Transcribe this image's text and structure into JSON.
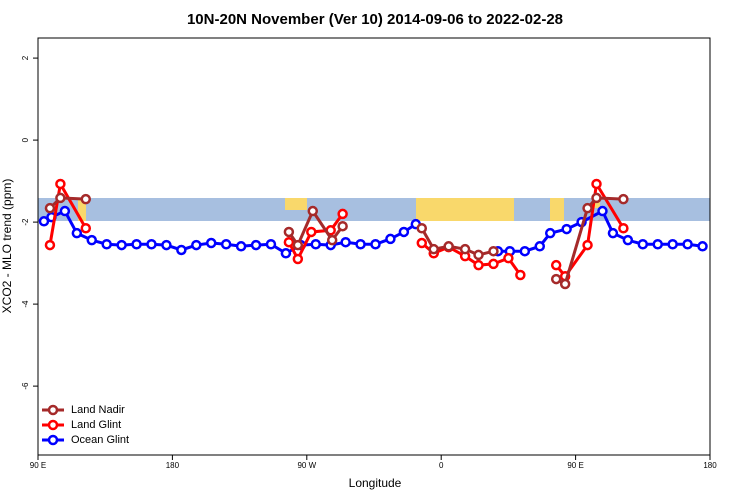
{
  "chart_data": {
    "type": "line",
    "title": "10N-20N November (Ver 10)   2014-09-06 to 2022-02-28",
    "xlabel": "Longitude",
    "ylabel": "XCO2 - MLO trend (ppm)",
    "xlim": [
      90,
      540
    ],
    "ylim": [
      -7.68,
      2.49
    ],
    "xticks": [
      {
        "value": 90,
        "label": "90 E"
      },
      180,
      {
        "value": 270,
        "label": "90 W"
      },
      {
        "value": 360,
        "label": "0"
      },
      {
        "value": 450,
        "label": "90 E"
      },
      {
        "value": 540,
        "label": "180"
      }
    ],
    "yticks": [
      2,
      0,
      -2,
      -4,
      -6
    ],
    "legend": "bottom-left",
    "series": [
      {
        "name": "Land Nadir",
        "color": "#a52a2a",
        "x": [
          98,
          105,
          122,
          null,
          258,
          264,
          274,
          287,
          294,
          null,
          347,
          355,
          365,
          376,
          385,
          395,
          null,
          437,
          443,
          458,
          464,
          482
        ],
        "values": [
          -1.66,
          -1.41,
          -1.44,
          null,
          -2.24,
          -2.56,
          -1.73,
          -2.44,
          -2.1,
          null,
          -2.15,
          -2.66,
          -2.59,
          -2.66,
          -2.8,
          -2.71,
          null,
          -3.39,
          -3.51,
          -1.66,
          -1.41,
          -1.44
        ]
      },
      {
        "name": "Land Glint",
        "color": "#ff0000",
        "x": [
          98,
          105,
          122,
          null,
          258,
          264,
          273,
          286,
          294,
          null,
          347,
          355,
          365,
          376,
          385,
          395,
          405,
          413,
          null,
          437,
          443,
          458,
          464,
          482
        ],
        "values": [
          -2.56,
          -1.07,
          -2.15,
          null,
          -2.49,
          -2.9,
          -2.24,
          -2.2,
          -1.8,
          null,
          -2.51,
          -2.76,
          -2.61,
          -2.83,
          -3.05,
          -3.02,
          -2.88,
          -3.29,
          null,
          -3.05,
          -3.32,
          -2.56,
          -1.07,
          -2.15
        ]
      },
      {
        "name": "Ocean Glint",
        "color": "#0000ff",
        "x": [
          94,
          99,
          108,
          116,
          126,
          136,
          146,
          156,
          166,
          176,
          186,
          196,
          206,
          216,
          226,
          236,
          246,
          256,
          266,
          276,
          286,
          296,
          306,
          316,
          326,
          335,
          343,
          null,
          398,
          406,
          416,
          426,
          433,
          444,
          454,
          468,
          475,
          485,
          495,
          505,
          515,
          525,
          535
        ],
        "values": [
          -1.98,
          -1.88,
          -1.73,
          -2.27,
          -2.44,
          -2.54,
          -2.56,
          -2.54,
          -2.54,
          -2.56,
          -2.68,
          -2.56,
          -2.51,
          -2.54,
          -2.59,
          -2.56,
          -2.54,
          -2.76,
          -2.56,
          -2.54,
          -2.56,
          -2.49,
          -2.54,
          -2.54,
          -2.41,
          -2.24,
          -2.05,
          null,
          -2.71,
          -2.71,
          -2.71,
          -2.59,
          -2.27,
          -2.17,
          -2.0,
          -1.73,
          -2.27,
          -2.44,
          -2.54,
          -2.54,
          -2.54,
          -2.54,
          -2.59
        ]
      }
    ]
  }
}
